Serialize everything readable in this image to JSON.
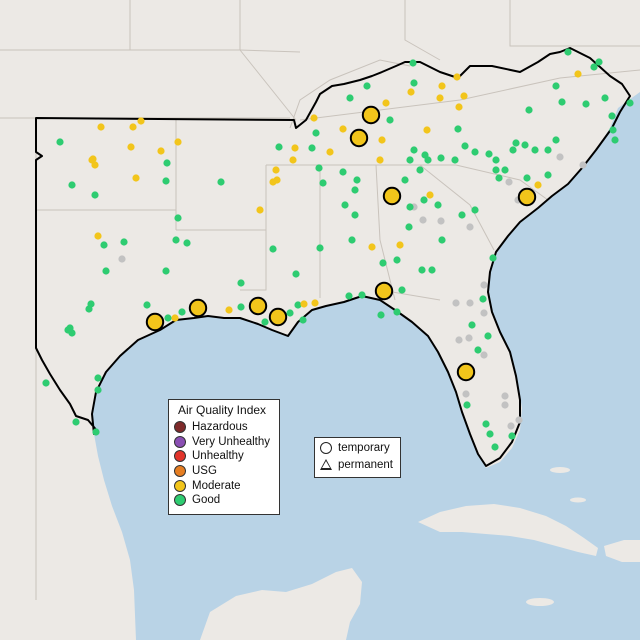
{
  "colors": {
    "land": "#ece9e5",
    "water": "#b9d3e6",
    "hazardous": "#7e2a2a",
    "very_unhealthy": "#8a4fb3",
    "unhealthy": "#e2342b",
    "usg": "#e67e22",
    "moderate": "#f2c51b",
    "good": "#2ecc71",
    "no_data": "#c2c2c2"
  },
  "legend": {
    "title": "Air Quality Index",
    "items": [
      {
        "label": "Hazardous",
        "color": "#7e2a2a"
      },
      {
        "label": "Very Unhealthy",
        "color": "#8a4fb3"
      },
      {
        "label": "Unhealthy",
        "color": "#e2342b"
      },
      {
        "label": "USG",
        "color": "#e67e22"
      },
      {
        "label": "Moderate",
        "color": "#f2c51b"
      },
      {
        "label": "Good",
        "color": "#2ecc71"
      }
    ]
  },
  "shape_legend": {
    "items": [
      {
        "label": "temporary",
        "shape": "circle"
      },
      {
        "label": "permanent",
        "shape": "triangle"
      }
    ]
  }
}
